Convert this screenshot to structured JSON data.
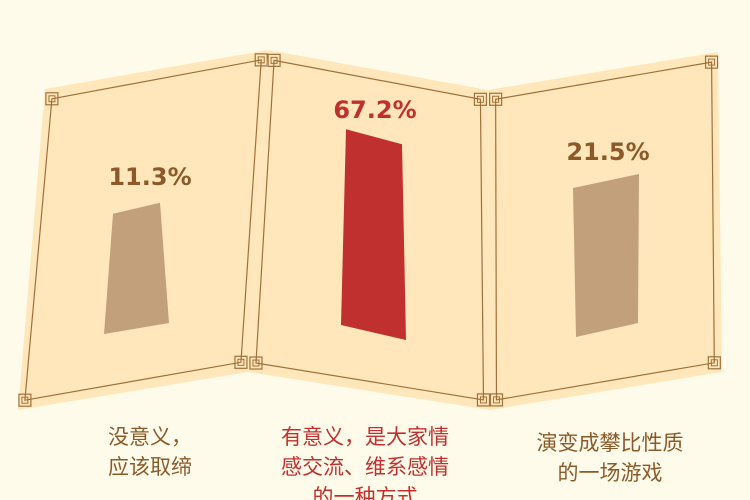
{
  "chart_data": {
    "type": "bar",
    "categories": [
      "没意义，应该取缔",
      "有意义，是大家情感交流、维系感情的一种方式",
      "演变成攀比性质的一场游戏"
    ],
    "values": [
      11.3,
      67.2,
      21.5
    ],
    "value_labels": [
      "11.3%",
      "67.2%",
      "21.5%"
    ],
    "caption_lines": [
      [
        "没意义，",
        "应该取缔"
      ],
      [
        "有意义，是大家情",
        "感交流、维系感情",
        "的一种方式"
      ],
      [
        "演变成攀比性质",
        "的一场游戏"
      ]
    ],
    "colors": {
      "bars": [
        "#c2a07c",
        "#c0302e",
        "#c2a07c"
      ],
      "labels": [
        "#8c5a2a",
        "#c0302e",
        "#8c5a2a"
      ],
      "panel": "#ffe7bb",
      "panel_border": "#a0703a",
      "background": "#fffbea"
    },
    "ylim": [
      0,
      100
    ]
  }
}
